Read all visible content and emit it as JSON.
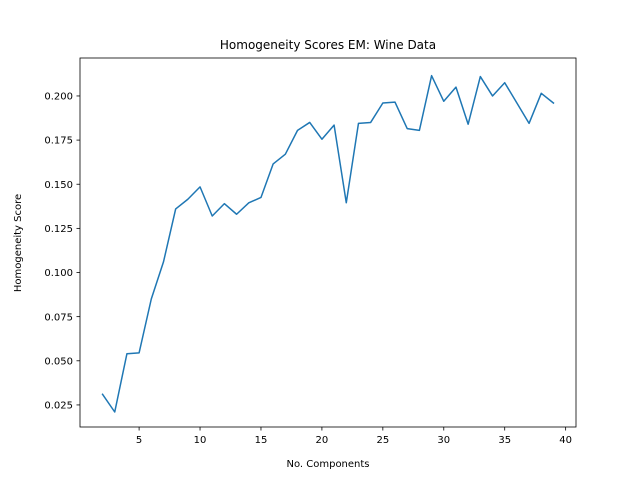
{
  "chart_data": {
    "type": "line",
    "title": "Homogeneity Scores EM: Wine Data",
    "xlabel": "No. Components",
    "ylabel": "Homogeneity Score",
    "xlim": [
      0.15,
      40.85
    ],
    "ylim": [
      0.0125,
      0.2215
    ],
    "xticks": [
      5,
      10,
      15,
      20,
      25,
      30,
      35,
      40
    ],
    "xtick_labels": [
      "5",
      "10",
      "15",
      "20",
      "25",
      "30",
      "35",
      "40"
    ],
    "yticks": [
      0.025,
      0.05,
      0.075,
      0.1,
      0.125,
      0.15,
      0.175,
      0.2
    ],
    "ytick_labels": [
      "0.025",
      "0.050",
      "0.075",
      "0.100",
      "0.125",
      "0.150",
      "0.175",
      "0.200"
    ],
    "grid": false,
    "line_color": "#1f77b4",
    "series": [
      {
        "x": [
          2,
          3,
          4,
          5,
          6,
          7,
          8,
          9,
          10,
          11,
          12,
          13,
          14,
          15,
          16,
          17,
          18,
          19,
          20,
          21,
          22,
          23,
          24,
          25,
          26,
          27,
          28,
          29,
          30,
          31,
          32,
          33,
          34,
          35,
          36,
          37,
          38,
          39
        ],
        "values": [
          0.031,
          0.021,
          0.054,
          0.0545,
          0.085,
          0.106,
          0.136,
          0.1415,
          0.1485,
          0.132,
          0.139,
          0.133,
          0.1395,
          0.1425,
          0.1615,
          0.167,
          0.1805,
          0.185,
          0.1755,
          0.1835,
          0.1395,
          0.1845,
          0.185,
          0.196,
          0.1965,
          0.1815,
          0.1805,
          0.2115,
          0.197,
          0.205,
          0.184,
          0.211,
          0.2,
          0.2075,
          0.196,
          0.1845,
          0.2015,
          0.196
        ]
      }
    ]
  }
}
